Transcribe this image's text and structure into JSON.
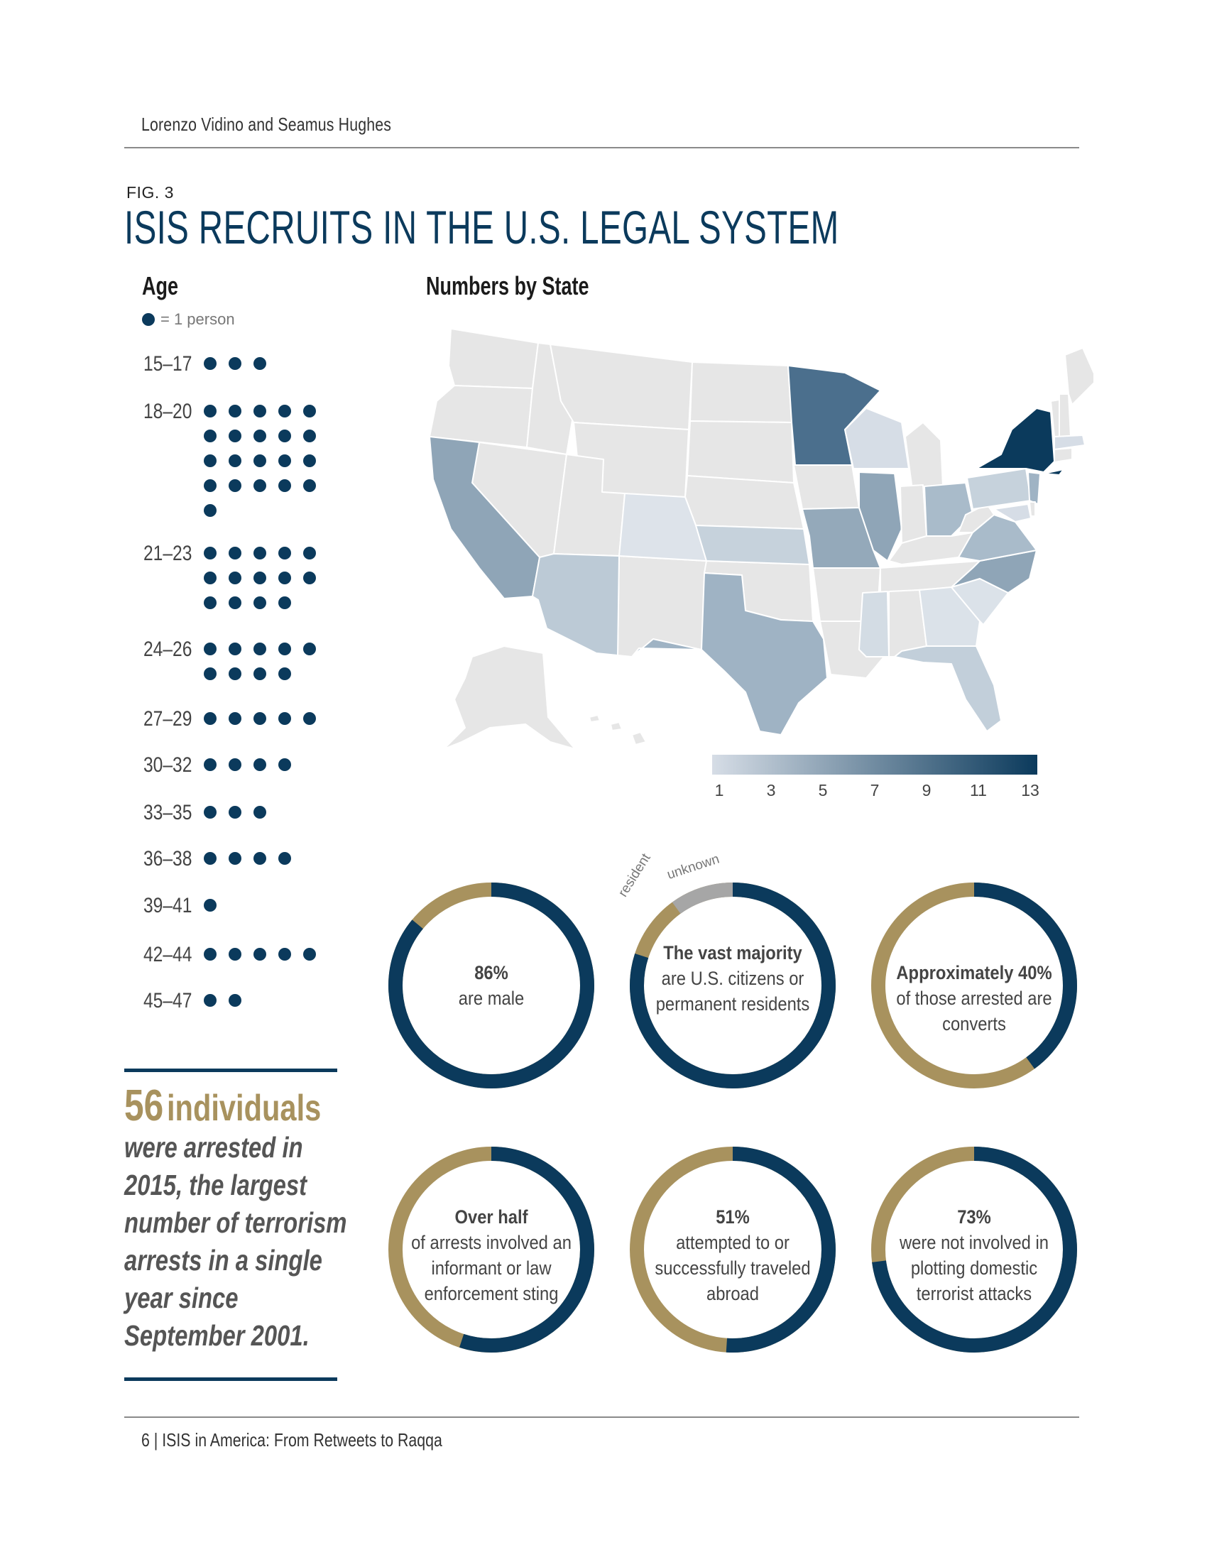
{
  "header": {
    "author": "Lorenzo Vidino and Seamus Hughes"
  },
  "figure": {
    "label": "FIG. 3",
    "title": "ISIS RECRUITS IN THE U.S. LEGAL SYSTEM"
  },
  "age": {
    "heading": "Age",
    "legend": "= 1 person",
    "groups": [
      {
        "range": "15–17",
        "count": 3
      },
      {
        "range": "18–20",
        "count": 21
      },
      {
        "range": "21–23",
        "count": 14
      },
      {
        "range": "24–26",
        "count": 9
      },
      {
        "range": "27–29",
        "count": 5
      },
      {
        "range": "30–32",
        "count": 4
      },
      {
        "range": "33–35",
        "count": 3
      },
      {
        "range": "36–38",
        "count": 4
      },
      {
        "range": "39–41",
        "count": 1
      },
      {
        "range": "42–44",
        "count": 5
      },
      {
        "range": "45–47",
        "count": 2
      }
    ]
  },
  "map": {
    "heading": "Numbers by State",
    "scale_labels": [
      "1",
      "3",
      "5",
      "7",
      "9",
      "11",
      "13"
    ],
    "scale_colors": {
      "low": "#d6dde6",
      "high": "#0b3a5c",
      "none": "#e6e6e6"
    }
  },
  "callout": {
    "number": "56",
    "word": "individuals",
    "text": "were arrested in 2015, the largest number of terrorism arrests in a single year since September 2001."
  },
  "rings": [
    {
      "bold": "86%",
      "text": "are male",
      "fraction_navy": 0.86
    },
    {
      "bold": "The vast majority",
      "text": "are U.S. citizens or permanent residents",
      "fraction_navy": 0.8,
      "labels": [
        "resident",
        "unknown"
      ]
    },
    {
      "bold": "Approximately 40%",
      "text": "of those arrested are converts",
      "fraction_navy": 0.4
    },
    {
      "bold": "Over half",
      "text": "of arrests involved an informant or law enforcement sting",
      "fraction_navy": 0.55
    },
    {
      "bold": "51%",
      "text": "attempted to or successfully traveled abroad",
      "fraction_navy": 0.51
    },
    {
      "bold": "73%",
      "text": "were not involved in plotting domestic terrorist attacks",
      "fraction_navy": 0.73
    }
  ],
  "colors": {
    "navy": "#0b3a5c",
    "gold": "#a8925e",
    "grey": "#a6a6a6"
  },
  "footer": {
    "text": "6 | ISIS in America: From Retweets to Raqqa"
  }
}
